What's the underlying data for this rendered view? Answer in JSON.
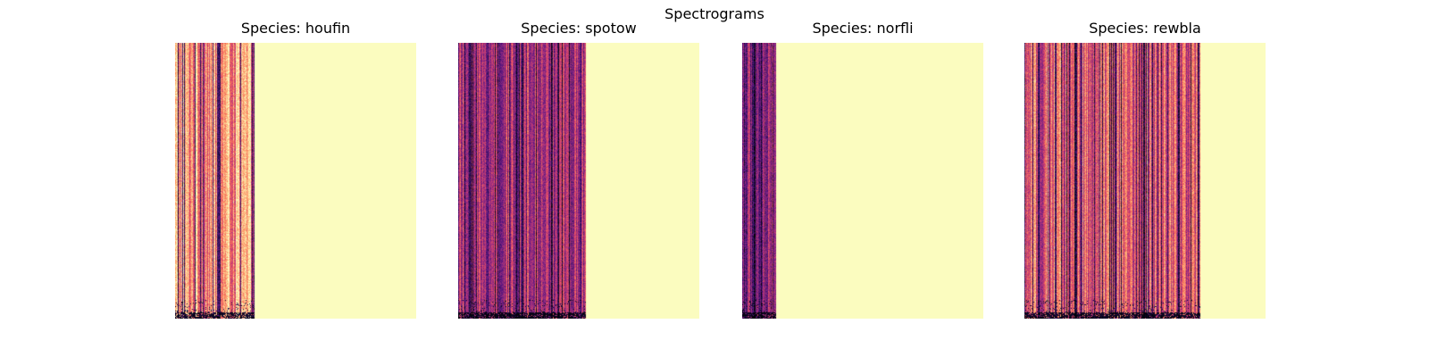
{
  "figure": {
    "title": "Spectrograms"
  },
  "chart_data": {
    "type": "heatmap",
    "colormap": "magma",
    "pad_color": "#fbfcbf",
    "axes_visible": false,
    "panels": [
      {
        "title": "Species: houfin",
        "species": "houfin",
        "signal_fraction": 0.33,
        "intensity": 0.78,
        "dark_line_density": 0.18
      },
      {
        "title": "Species: spotow",
        "species": "spotow",
        "signal_fraction": 0.53,
        "intensity": 0.45,
        "dark_line_density": 0.12
      },
      {
        "title": "Species: norfli",
        "species": "norfli",
        "signal_fraction": 0.14,
        "intensity": 0.35,
        "dark_line_density": 0.2
      },
      {
        "title": "Species: rewbla",
        "species": "rewbla",
        "signal_fraction": 0.73,
        "intensity": 0.62,
        "dark_line_density": 0.15
      }
    ]
  }
}
